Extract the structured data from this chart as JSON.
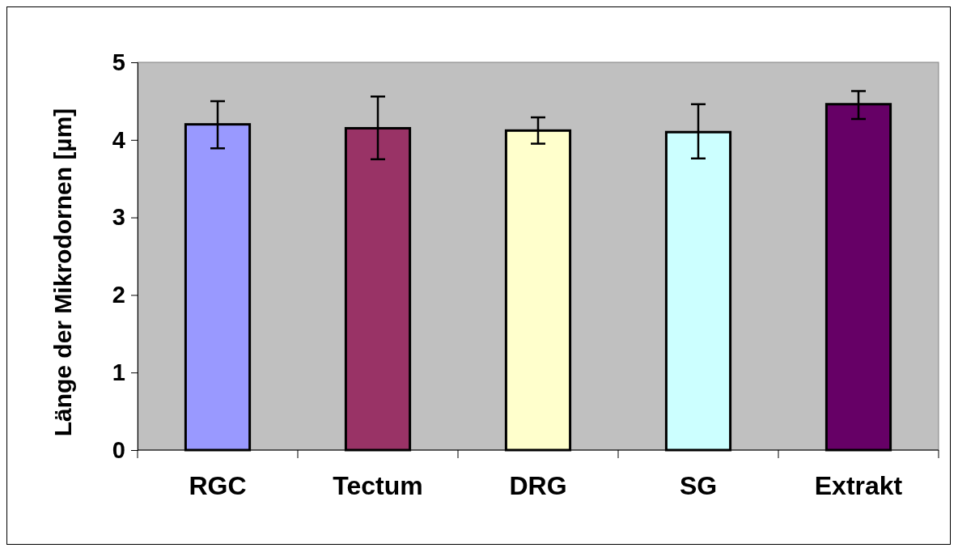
{
  "chart_data": {
    "type": "bar",
    "ylabel": "Länge der Mikrodornen [µm]",
    "categories": [
      "RGC",
      "Tectum",
      "DRG",
      "SG",
      "Extrakt"
    ],
    "values": [
      4.2,
      4.15,
      4.12,
      4.1,
      4.46
    ],
    "colors": [
      "#9999ff",
      "#993366",
      "#ffffcc",
      "#ccffff",
      "#660066"
    ],
    "errors": [
      [
        3.89,
        4.5
      ],
      [
        3.75,
        4.56
      ],
      [
        3.95,
        4.29
      ],
      [
        3.76,
        4.46
      ],
      [
        4.27,
        4.63
      ]
    ],
    "ylim": [
      0,
      5
    ],
    "yticks": [
      0,
      1,
      2,
      3,
      4,
      5
    ],
    "grid": false
  }
}
